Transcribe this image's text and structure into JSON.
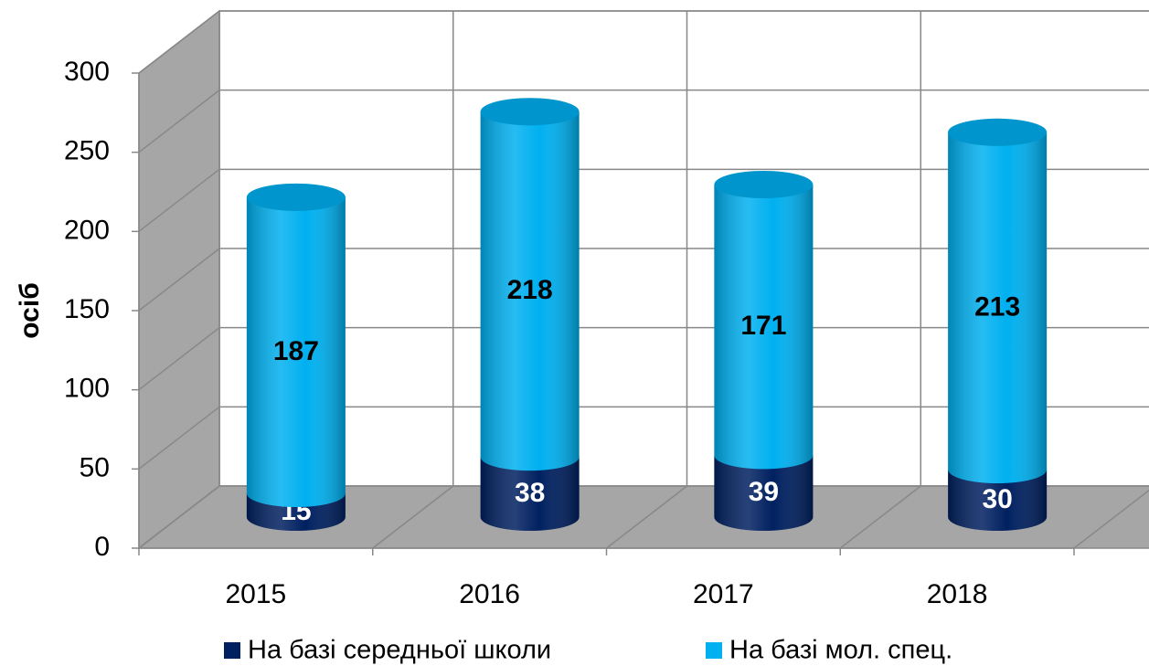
{
  "chart_data": {
    "type": "bar3d_cylinder_stacked",
    "categories": [
      "2015",
      "2016",
      "2017",
      "2018"
    ],
    "series": [
      {
        "name": "На базі середньої школи",
        "color": "#002060",
        "values": [
          15,
          38,
          39,
          30
        ]
      },
      {
        "name": "На базі мол. спец.",
        "color": "#00b0f0",
        "values": [
          187,
          218,
          171,
          213
        ]
      }
    ],
    "y_label": "осіб",
    "ylim": [
      0,
      300
    ],
    "yticks": [
      0,
      50,
      100,
      150,
      200,
      250,
      300
    ],
    "grid": true,
    "legend": "bottom"
  }
}
